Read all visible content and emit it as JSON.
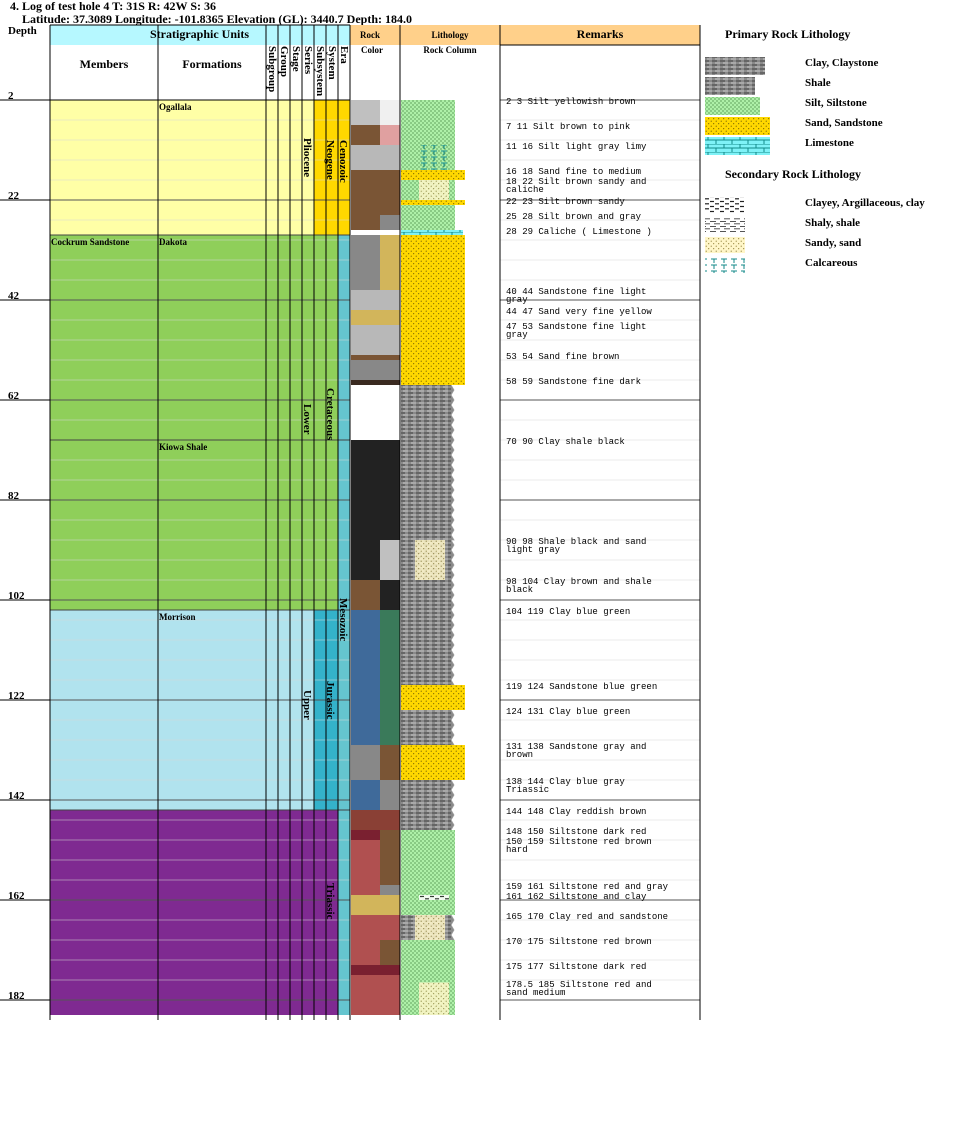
{
  "header": {
    "title": "4. Log of test hole 4 T: 31S R: 42W S: 36",
    "location": "Latitude: 37.3089 Longitude: -101.8365 Elevation (GL): 3440.7 Depth: 184.0"
  },
  "columns": {
    "depth": "Depth",
    "strat_units": "Stratigraphic Units",
    "members": "Members",
    "formations": "Formations",
    "rank_labels": [
      "Subgroup",
      "Group",
      "Stage",
      "Series",
      "Subsystem",
      "System",
      "Era"
    ],
    "rock": "Rock",
    "color": "Color",
    "lithology": "Lithology",
    "rock_column": "Rock Column",
    "remarks": "Remarks"
  },
  "depth_ticks": [
    "2",
    "22",
    "42",
    "62",
    "82",
    "102",
    "122",
    "142",
    "162",
    "182"
  ],
  "units": {
    "members": [
      {
        "name": "Cockrum Sandstone"
      }
    ],
    "formations": [
      {
        "name": "Ogallala"
      },
      {
        "name": "Dakota"
      },
      {
        "name": "Kiowa Shale"
      },
      {
        "name": "Morrison"
      }
    ],
    "series": [
      {
        "name": "Pliocene"
      },
      {
        "name": "Lower"
      },
      {
        "name": "Upper"
      }
    ],
    "systems": [
      {
        "name": "Neogene"
      },
      {
        "name": "Cretaceous"
      },
      {
        "name": "Jurassic"
      },
      {
        "name": "Triassic"
      }
    ],
    "eras": [
      {
        "name": "Cenozoic"
      },
      {
        "name": "Mesozoic"
      }
    ]
  },
  "zone_colors": {
    "cenozoic": "#ffffa6",
    "cretaceous": "#8fcf5a",
    "jurassic": "#b1e3ee",
    "triassic": "#7f2a91",
    "neogene_system": "#ffd800",
    "cretaceous_system": "#8fcf5a",
    "jurassic_system": "#34b2ca",
    "era_column": "#65c5cf"
  },
  "remarks": [
    {
      "top": 2,
      "bottom": 3,
      "text": "2 3 Silt yellowish brown"
    },
    {
      "top": 7,
      "bottom": 11,
      "text": "7 11 Silt brown to pink"
    },
    {
      "top": 11,
      "bottom": 16,
      "text": "11 16 Silt light gray limy"
    },
    {
      "top": 16,
      "bottom": 18,
      "text": "16 18 Sand fine to medium"
    },
    {
      "top": 18,
      "bottom": 22,
      "text": "18 22 Silt brown sandy and\ncaliche"
    },
    {
      "top": 22,
      "bottom": 23,
      "text": "22 23 Silt brown sandy"
    },
    {
      "top": 25,
      "bottom": 28,
      "text": "25 28 Silt brown and gray"
    },
    {
      "top": 28,
      "bottom": 29,
      "text": "28 29 Caliche ( Limestone )"
    },
    {
      "top": 40,
      "bottom": 44,
      "text": "40 44 Sandstone fine light\ngray"
    },
    {
      "top": 44,
      "bottom": 47,
      "text": "44 47 Sand very fine yellow"
    },
    {
      "top": 47,
      "bottom": 53,
      "text": "47 53 Sandstone fine light\ngray"
    },
    {
      "top": 53,
      "bottom": 54,
      "text": "53 54 Sand fine brown"
    },
    {
      "top": 58,
      "bottom": 59,
      "text": "58 59 Sandstone fine dark"
    },
    {
      "top": 70,
      "bottom": 90,
      "text": "70 90 Clay shale black"
    },
    {
      "top": 90,
      "bottom": 98,
      "text": "90 98 Shale black and sand\nlight gray"
    },
    {
      "top": 98,
      "bottom": 104,
      "text": "98 104 Clay brown and shale\nblack"
    },
    {
      "top": 104,
      "bottom": 119,
      "text": "104 119 Clay blue green"
    },
    {
      "top": 119,
      "bottom": 124,
      "text": "119 124 Sandstone blue green"
    },
    {
      "top": 124,
      "bottom": 131,
      "text": "124 131 Clay blue green"
    },
    {
      "top": 131,
      "bottom": 138,
      "text": "131 138 Sandstone gray and\nbrown"
    },
    {
      "top": 138,
      "bottom": 144,
      "text": "138 144 Clay blue gray\nTriassic"
    },
    {
      "top": 144,
      "bottom": 148,
      "text": "144 148 Clay reddish brown"
    },
    {
      "top": 148,
      "bottom": 150,
      "text": "148 150 Siltstone dark red"
    },
    {
      "top": 150,
      "bottom": 159,
      "text": "150 159 Siltstone red brown\nhard"
    },
    {
      "top": 159,
      "bottom": 161,
      "text": "159 161 Siltstone red and gray"
    },
    {
      "top": 161,
      "bottom": 162,
      "text": "161 162 Siltstone and clay"
    },
    {
      "top": 165,
      "bottom": 170,
      "text": "165 170 Clay red and sandstone"
    },
    {
      "top": 170,
      "bottom": 175,
      "text": "170 175 Siltstone red brown"
    },
    {
      "top": 175,
      "bottom": 177,
      "text": "175 177 Siltstone dark red"
    },
    {
      "top": 178.5,
      "bottom": 185,
      "text": "178.5 185 Siltstone red and\nsand medium"
    }
  ],
  "rock_colors": [
    {
      "top": 2,
      "bottom": 7,
      "c1": "#c0c0c0",
      "c2": "#f0f0f0"
    },
    {
      "top": 7,
      "bottom": 11,
      "c1": "#7a5535",
      "c2": "#e0a0a0"
    },
    {
      "top": 11,
      "bottom": 16,
      "c1": "#b8b8b8",
      "c2": "#b8b8b8"
    },
    {
      "top": 16,
      "bottom": 18,
      "c1": "#7a5535",
      "c2": "#7a5535"
    },
    {
      "top": 18,
      "bottom": 22,
      "c1": "#7a5535",
      "c2": "#7a5535"
    },
    {
      "top": 22,
      "bottom": 25,
      "c1": "#7a5535",
      "c2": "#7a5535"
    },
    {
      "top": 25,
      "bottom": 28,
      "c1": "#7a5535",
      "c2": "#888888"
    },
    {
      "top": 28,
      "bottom": 29,
      "c1": "#ffffff",
      "c2": "#ffffff"
    },
    {
      "top": 29,
      "bottom": 36,
      "c1": "#888888",
      "c2": "#d2b55b"
    },
    {
      "top": 36,
      "bottom": 40,
      "c1": "#888888",
      "c2": "#d2b55b"
    },
    {
      "top": 40,
      "bottom": 44,
      "c1": "#b8b8b8",
      "c2": "#b8b8b8"
    },
    {
      "top": 44,
      "bottom": 47,
      "c1": "#d2b55b",
      "c2": "#d2b55b"
    },
    {
      "top": 47,
      "bottom": 53,
      "c1": "#b8b8b8",
      "c2": "#b8b8b8"
    },
    {
      "top": 53,
      "bottom": 54,
      "c1": "#7a5535",
      "c2": "#7a5535"
    },
    {
      "top": 54,
      "bottom": 58,
      "c1": "#888888",
      "c2": "#888888"
    },
    {
      "top": 58,
      "bottom": 59,
      "c1": "#3a2a20",
      "c2": "#3a2a20"
    },
    {
      "top": 59,
      "bottom": 70,
      "c1": "#ffffff",
      "c2": "#ffffff"
    },
    {
      "top": 70,
      "bottom": 90,
      "c1": "#222222",
      "c2": "#222222"
    },
    {
      "top": 90,
      "bottom": 98,
      "c1": "#222222",
      "c2": "#c0c0c0"
    },
    {
      "top": 98,
      "bottom": 104,
      "c1": "#7a5535",
      "c2": "#222222"
    },
    {
      "top": 104,
      "bottom": 119,
      "c1": "#3f6a9a",
      "c2": "#3a7a5a"
    },
    {
      "top": 119,
      "bottom": 124,
      "c1": "#3f6a9a",
      "c2": "#3a7a5a"
    },
    {
      "top": 124,
      "bottom": 131,
      "c1": "#3f6a9a",
      "c2": "#3a7a5a"
    },
    {
      "top": 131,
      "bottom": 138,
      "c1": "#888888",
      "c2": "#7a5535"
    },
    {
      "top": 138,
      "bottom": 144,
      "c1": "#3f6a9a",
      "c2": "#888888"
    },
    {
      "top": 144,
      "bottom": 148,
      "c1": "#8a4035",
      "c2": "#8a4035"
    },
    {
      "top": 148,
      "bottom": 150,
      "c1": "#7a2030",
      "c2": "#7a5535"
    },
    {
      "top": 150,
      "bottom": 159,
      "c1": "#b05050",
      "c2": "#7a5535"
    },
    {
      "top": 159,
      "bottom": 161,
      "c1": "#b05050",
      "c2": "#888888"
    },
    {
      "top": 161,
      "bottom": 165,
      "c1": "#d2b55b",
      "c2": "#d2b55b"
    },
    {
      "top": 165,
      "bottom": 170,
      "c1": "#b05050",
      "c2": "#b05050"
    },
    {
      "top": 170,
      "bottom": 175,
      "c1": "#b05050",
      "c2": "#7a5535"
    },
    {
      "top": 175,
      "bottom": 177,
      "c1": "#7a2030",
      "c2": "#7a2030"
    },
    {
      "top": 177,
      "bottom": 185,
      "c1": "#b05050",
      "c2": "#b05050"
    }
  ],
  "lithology": [
    {
      "top": 2,
      "bottom": 11,
      "type": "silt"
    },
    {
      "top": 11,
      "bottom": 16,
      "type": "silt",
      "secondary": "calcareous"
    },
    {
      "top": 16,
      "bottom": 18,
      "type": "sand"
    },
    {
      "top": 18,
      "bottom": 22,
      "type": "silt",
      "secondary": "sandy"
    },
    {
      "top": 22,
      "bottom": 23,
      "type": "sand"
    },
    {
      "top": 23,
      "bottom": 28,
      "type": "silt"
    },
    {
      "top": 28,
      "bottom": 29,
      "type": "limestone"
    },
    {
      "top": 29,
      "bottom": 59,
      "type": "sand"
    },
    {
      "top": 59,
      "bottom": 90,
      "type": "clay"
    },
    {
      "top": 90,
      "bottom": 98,
      "type": "clay",
      "secondary": "sandy"
    },
    {
      "top": 98,
      "bottom": 119,
      "type": "clay"
    },
    {
      "top": 119,
      "bottom": 124,
      "type": "sand"
    },
    {
      "top": 124,
      "bottom": 131,
      "type": "clay"
    },
    {
      "top": 131,
      "bottom": 138,
      "type": "sand"
    },
    {
      "top": 138,
      "bottom": 148,
      "type": "clay"
    },
    {
      "top": 148,
      "bottom": 161,
      "type": "silt"
    },
    {
      "top": 161,
      "bottom": 162,
      "type": "silt",
      "secondary": "clayey"
    },
    {
      "top": 162,
      "bottom": 165,
      "type": "silt"
    },
    {
      "top": 165,
      "bottom": 170,
      "type": "clay",
      "secondary": "sandy"
    },
    {
      "top": 170,
      "bottom": 178.5,
      "type": "silt"
    },
    {
      "top": 178.5,
      "bottom": 185,
      "type": "silt",
      "secondary": "sandy"
    }
  ],
  "legend": {
    "primary_title": "Primary Rock Lithology",
    "primary": [
      {
        "type": "clay",
        "label": "Clay, Claystone"
      },
      {
        "type": "shale",
        "label": "Shale"
      },
      {
        "type": "silt",
        "label": "Silt, Siltstone"
      },
      {
        "type": "sand",
        "label": "Sand, Sandstone"
      },
      {
        "type": "limestone",
        "label": "Limestone"
      }
    ],
    "secondary_title": "Secondary Rock Lithology",
    "secondary": [
      {
        "type": "clayey",
        "label": "Clayey, Argillaceous, clay"
      },
      {
        "type": "shaly",
        "label": "Shaly, shale"
      },
      {
        "type": "sandy",
        "label": "Sandy, sand"
      },
      {
        "type": "calcareous",
        "label": "Calcareous"
      }
    ]
  },
  "pattern_colors": {
    "silt": "#aef0a8",
    "sand": "#ffd800",
    "limestone": "#7ff2f7",
    "clay": "#8a8a8a",
    "clay_dark": "#505050",
    "calc": "#138a8a"
  }
}
